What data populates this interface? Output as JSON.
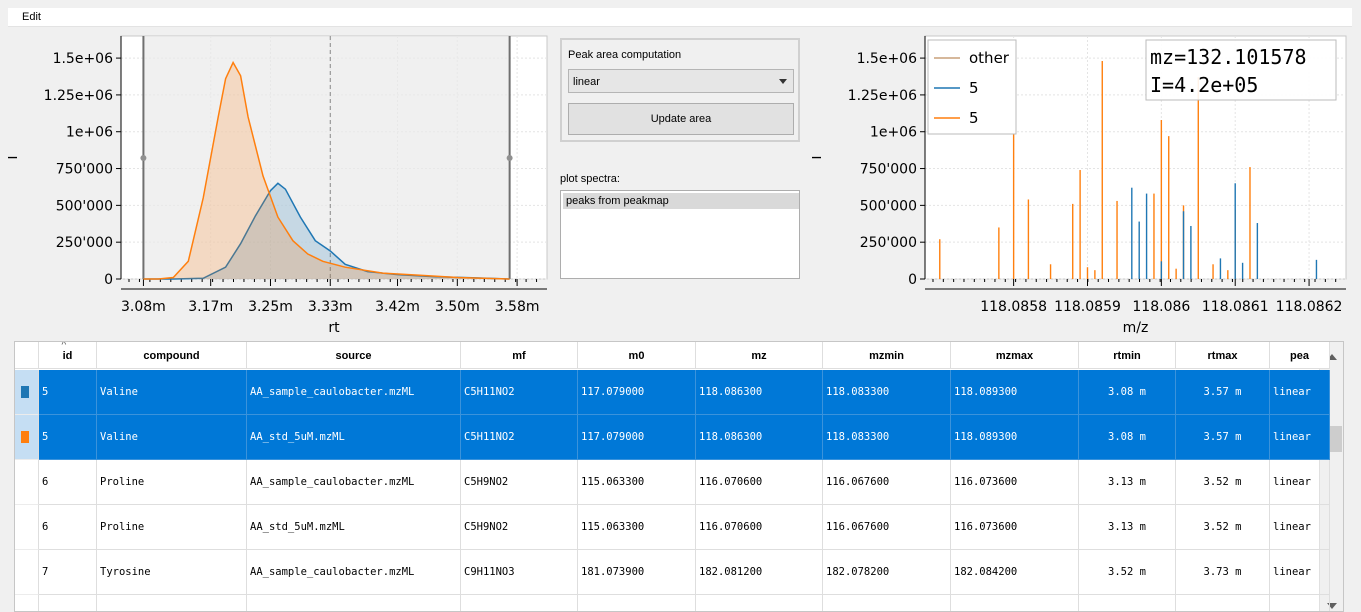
{
  "menu": {
    "edit": "Edit"
  },
  "rt_plot": {
    "ylabel": "I",
    "xlabel": "rt",
    "yticks": [
      "1.5e+06",
      "1.25e+06",
      "1e+06",
      "750'000",
      "500'000",
      "250'000",
      "0"
    ],
    "xticks": [
      "3.08m",
      "3.17m",
      "3.25m",
      "3.33m",
      "3.42m",
      "3.50m",
      "3.58m"
    ]
  },
  "chart_data": [
    {
      "type": "area",
      "xlabel": "rt",
      "ylabel": "I",
      "xunit": "min",
      "xlim": [
        3.05,
        3.62
      ],
      "ylim": [
        0,
        1650000
      ],
      "grid": true,
      "selected_range": [
        3.08,
        3.57
      ],
      "series": [
        {
          "color": "#1f77b4",
          "x": [
            3.08,
            3.12,
            3.16,
            3.19,
            3.21,
            3.23,
            3.25,
            3.26,
            3.27,
            3.29,
            3.31,
            3.33,
            3.35,
            3.38,
            3.42,
            3.47,
            3.52,
            3.57
          ],
          "y": [
            0,
            0,
            5000,
            80000,
            240000,
            430000,
            600000,
            650000,
            610000,
            420000,
            260000,
            190000,
            100000,
            50000,
            30000,
            15000,
            8000,
            0
          ]
        },
        {
          "color": "#ff7f0e",
          "x": [
            3.08,
            3.1,
            3.12,
            3.14,
            3.16,
            3.18,
            3.19,
            3.2,
            3.21,
            3.22,
            3.24,
            3.26,
            3.28,
            3.3,
            3.32,
            3.35,
            3.4,
            3.45,
            3.5,
            3.57
          ],
          "y": [
            0,
            0,
            10000,
            120000,
            550000,
            1100000,
            1360000,
            1470000,
            1380000,
            1100000,
            700000,
            420000,
            260000,
            170000,
            120000,
            80000,
            40000,
            25000,
            10000,
            0
          ]
        }
      ]
    },
    {
      "type": "bar",
      "xlabel": "m/z",
      "ylabel": "I",
      "xlim": [
        118.08568,
        118.08625
      ],
      "ylim": [
        0,
        1650000
      ],
      "grid": true,
      "legend_position": "top-left",
      "legend": [
        {
          "label": "other",
          "color": "#c9a07a"
        },
        {
          "label": "5",
          "color": "#1f77b4"
        },
        {
          "label": "5",
          "color": "#ff7f0e"
        }
      ],
      "annotation": [
        "mz=132.101578",
        "I=4.2e+05"
      ],
      "series": [
        {
          "color": "#ff7f0e",
          "x": [
            118.0857,
            118.08578,
            118.0858,
            118.08582,
            118.08585,
            118.08588,
            118.08589,
            118.0859,
            118.08591,
            118.08592,
            118.08594,
            118.08599,
            118.086,
            118.08601,
            118.08602,
            118.08603,
            118.08605,
            118.08607,
            118.08609,
            118.0861,
            118.08612
          ],
          "y": [
            270000,
            350000,
            1170000,
            540000,
            100000,
            510000,
            740000,
            80000,
            60000,
            1480000,
            530000,
            580000,
            1080000,
            970000,
            70000,
            500000,
            1370000,
            100000,
            60000,
            470000,
            760000
          ]
        },
        {
          "color": "#1f77b4",
          "x": [
            118.08596,
            118.08597,
            118.08598,
            118.086,
            118.08603,
            118.08604,
            118.08608,
            118.0861,
            118.08611,
            118.08613,
            118.08621
          ],
          "y": [
            620000,
            390000,
            580000,
            120000,
            460000,
            360000,
            140000,
            650000,
            110000,
            380000,
            130000
          ]
        }
      ]
    }
  ],
  "mz_plot": {
    "ylabel": "I",
    "xlabel": "m/z",
    "yticks": [
      "1.5e+06",
      "1.25e+06",
      "1e+06",
      "750'000",
      "500'000",
      "250'000",
      "0"
    ],
    "xticks": [
      "118.0858",
      "118.0859",
      "118.086",
      "118.0861",
      "118.0862"
    ]
  },
  "controls": {
    "peak_area_title": "Peak area computation",
    "method_value": "linear",
    "update_button": "Update area",
    "plot_spectra_label": "plot spectra:",
    "spectra_items": [
      "peaks from peakmap"
    ]
  },
  "table": {
    "columns": [
      "id",
      "compound",
      "source",
      "mf",
      "m0",
      "mz",
      "mzmin",
      "mzmax",
      "rtmin",
      "rtmax",
      "pea"
    ],
    "rows": [
      {
        "selected": true,
        "color": "#1f77b4",
        "cells": [
          "5",
          "Valine",
          "AA_sample_caulobacter.mzML",
          "C5H11NO2",
          "117.079000",
          "118.086300",
          "118.083300",
          "118.089300",
          "3.08 m",
          "3.57 m",
          "linear"
        ]
      },
      {
        "selected": true,
        "color": "#ff7f0e",
        "cells": [
          "5",
          "Valine",
          "AA_std_5uM.mzML",
          "C5H11NO2",
          "117.079000",
          "118.086300",
          "118.083300",
          "118.089300",
          "3.08 m",
          "3.57 m",
          "linear"
        ]
      },
      {
        "selected": false,
        "color": "",
        "cells": [
          "6",
          "Proline",
          "AA_sample_caulobacter.mzML",
          "C5H9NO2",
          "115.063300",
          "116.070600",
          "116.067600",
          "116.073600",
          "3.13 m",
          "3.52 m",
          "linear"
        ]
      },
      {
        "selected": false,
        "color": "",
        "cells": [
          "6",
          "Proline",
          "AA_std_5uM.mzML",
          "C5H9NO2",
          "115.063300",
          "116.070600",
          "116.067600",
          "116.073600",
          "3.13 m",
          "3.52 m",
          "linear"
        ]
      },
      {
        "selected": false,
        "color": "",
        "cells": [
          "7",
          "Tyrosine",
          "AA_sample_caulobacter.mzML",
          "C9H11NO3",
          "181.073900",
          "182.081200",
          "182.078200",
          "182.084200",
          "3.52 m",
          "3.73 m",
          "linear"
        ]
      },
      {
        "selected": false,
        "color": "",
        "cells": [
          "",
          "",
          "",
          "",
          "",
          "",
          "",
          "",
          "",
          "",
          ""
        ]
      }
    ]
  }
}
